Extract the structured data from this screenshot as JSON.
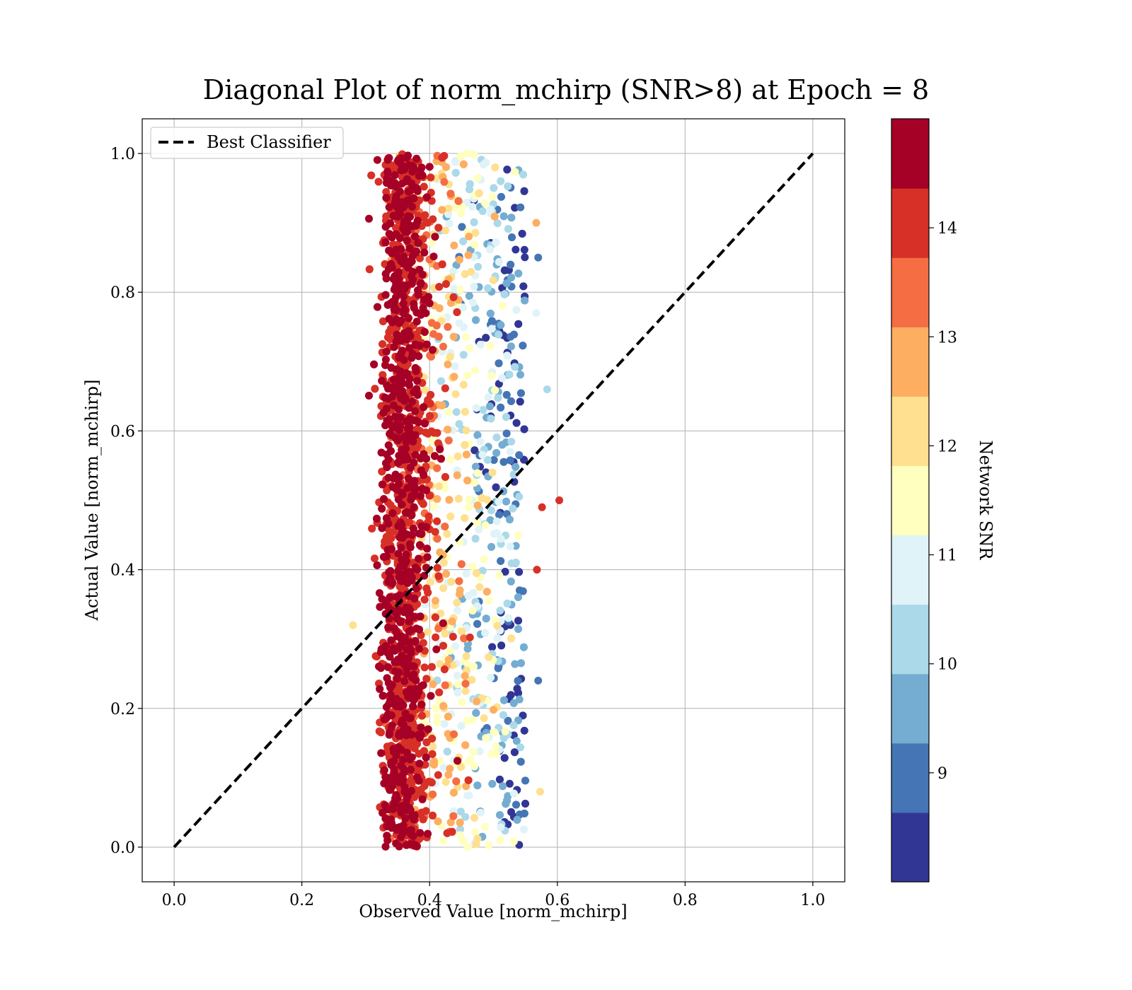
{
  "chart_data": {
    "type": "scatter",
    "title": "Diagonal Plot of norm_mchirp (SNR>8) at Epoch = 8",
    "xlabel": "Observed Value [norm_mchirp]",
    "ylabel": "Actual Value [norm_mchirp]",
    "xlim": [
      -0.05,
      1.05
    ],
    "ylim": [
      -0.05,
      1.05
    ],
    "x_ticks": [
      "0.0",
      "0.2",
      "0.4",
      "0.6",
      "0.8",
      "1.0"
    ],
    "y_ticks": [
      "0.0",
      "0.2",
      "0.4",
      "0.6",
      "0.8",
      "1.0"
    ],
    "grid": true,
    "legend": {
      "position": "top-left",
      "entries": [
        "Best Classifier"
      ]
    },
    "reference_line": {
      "name": "Best Classifier",
      "style": "dashed",
      "color": "#000000",
      "x": [
        0.0,
        1.0
      ],
      "y": [
        0.0,
        1.0
      ]
    },
    "scatter_cloud": {
      "description_range_x": [
        0.3,
        0.57
      ],
      "range_y": [
        0.0,
        1.0
      ],
      "color_by": "Network SNR",
      "dense_core_x": [
        0.32,
        0.4
      ],
      "outliers": [
        {
          "x": 0.28,
          "y": 0.32,
          "snr": 12
        },
        {
          "x": 0.567,
          "y": 0.9,
          "snr": 13
        },
        {
          "x": 0.603,
          "y": 0.5,
          "snr": 14
        },
        {
          "x": 0.573,
          "y": 0.08,
          "snr": 12.5
        },
        {
          "x": 0.584,
          "y": 0.66,
          "snr": 10
        },
        {
          "x": 0.567,
          "y": 0.77,
          "snr": 11
        },
        {
          "x": 0.57,
          "y": 0.24,
          "snr": 9
        },
        {
          "x": 0.57,
          "y": 0.85,
          "snr": 8.5
        },
        {
          "x": 0.576,
          "y": 0.49,
          "snr": 14.5
        },
        {
          "x": 0.568,
          "y": 0.4,
          "snr": 14.5
        }
      ]
    },
    "colorbar": {
      "label": "Network SNR",
      "range": [
        8,
        15
      ],
      "ticks": [
        "9",
        "10",
        "11",
        "12",
        "13",
        "14"
      ],
      "colors": [
        "#313695",
        "#4575b4",
        "#74add1",
        "#abd9e9",
        "#e0f3f8",
        "#ffffbf",
        "#fee090",
        "#fdae61",
        "#f46d43",
        "#d73027",
        "#a50026"
      ]
    }
  }
}
